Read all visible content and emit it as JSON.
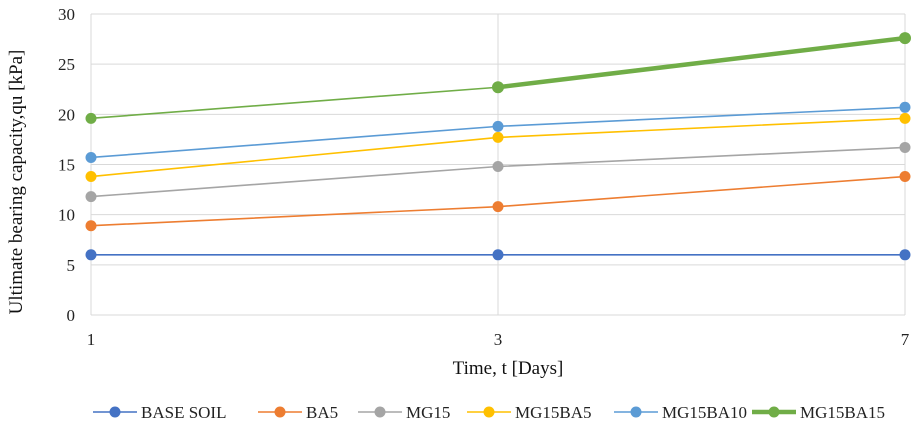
{
  "chart_data": {
    "type": "line",
    "xlabel": "Time,  t [Days]",
    "ylabel": "Ultimate  bearing capacity,qu [kPa]",
    "categories": [
      "1",
      "3",
      "7"
    ],
    "ylim": [
      0,
      30
    ],
    "yticks": [
      0,
      5,
      10,
      15,
      20,
      25,
      30
    ],
    "grid": true,
    "legend_position": "bottom",
    "series": [
      {
        "name": "BASE SOIL",
        "color": "#4472C4",
        "values": [
          6,
          6,
          6
        ]
      },
      {
        "name": "BA5",
        "color": "#ED7D31",
        "values": [
          8.9,
          10.8,
          13.8
        ]
      },
      {
        "name": "MG15",
        "color": "#A5A5A5",
        "values": [
          11.8,
          14.8,
          16.7
        ]
      },
      {
        "name": "MG15BA5",
        "color": "#FFC000",
        "values": [
          13.8,
          17.7,
          19.6
        ]
      },
      {
        "name": "MG15BA10",
        "color": "#5B9BD5",
        "values": [
          15.7,
          18.8,
          20.7
        ]
      },
      {
        "name": "MG15BA15",
        "color": "#70AD47",
        "values": [
          19.6,
          22.7,
          27.6
        ]
      }
    ]
  }
}
